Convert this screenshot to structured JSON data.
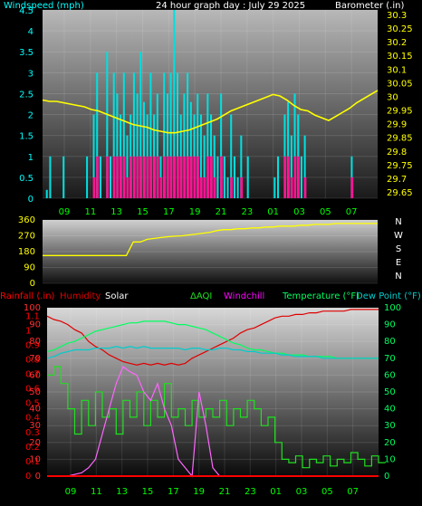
{
  "header": {
    "left_label": "Windspeed (mph)",
    "center_label": "24 hour graph day : July 29 2025",
    "right_label": "Barometer (.in)"
  },
  "colors": {
    "wind_gust": "#00e0e0",
    "wind_avg": "#ff1493",
    "barometer": "#ffff00",
    "direction": "#ffff00",
    "rainfall": "#ff0000",
    "humidity": "#e00000",
    "solar": "#ff66ff",
    "aqi": "#20e020",
    "windchill": "#ff00ff",
    "temperature": "#00ff60",
    "dewpoint": "#00cccc",
    "x_ticks": "#00ff00",
    "left_ticks_top": "#00ffff",
    "right_ticks_top": "#ffff00"
  },
  "chart_data": [
    {
      "type": "bar",
      "title": "24 hour graph day : July 29 2025",
      "ylabel": "Windspeed (mph)",
      "y2label": "Barometer (.in)",
      "ylim": [
        0,
        4.5
      ],
      "y2lim": [
        29.63,
        30.32
      ],
      "x_ticks": [
        "09",
        "11",
        "13",
        "15",
        "17",
        "19",
        "21",
        "23",
        "01",
        "03",
        "05",
        "07"
      ],
      "y_ticks": [
        "0",
        "0.5",
        "1",
        "1.5",
        "2",
        "2.5",
        "3",
        "3.5",
        "4",
        "4.5"
      ],
      "y2_ticks": [
        "29.65",
        "29.7",
        "29.75",
        "29.8",
        "29.85",
        "29.9",
        "29.95",
        "30",
        "30.05",
        "30.1",
        "30.15",
        "30.2",
        "30.25",
        "30.3"
      ],
      "series": [
        {
          "name": "gust",
          "values": [
            0,
            0.2,
            1,
            0,
            0,
            0,
            1,
            0,
            0,
            0,
            0,
            0,
            0,
            1,
            0,
            2,
            3,
            1,
            0,
            3.5,
            1,
            3,
            2.5,
            2,
            3,
            1.5,
            2,
            3,
            2.5,
            3.5,
            2.3,
            2,
            3,
            2,
            2.5,
            1,
            3,
            2.5,
            3,
            4.5,
            3,
            2,
            2.5,
            3,
            2.3,
            2,
            2.5,
            2,
            1.5,
            2.5,
            2,
            1.5,
            1,
            2.5,
            1,
            0.5,
            2,
            1,
            0.5,
            1.5,
            0,
            1,
            0,
            0,
            0,
            0,
            0,
            0,
            0,
            0.5,
            1,
            0,
            2,
            2.3,
            1.5,
            2.5,
            2,
            1,
            1.5,
            0,
            0,
            0,
            0,
            0,
            0,
            0,
            0,
            0,
            0,
            0,
            0,
            0,
            1,
            0,
            0,
            0,
            0,
            0,
            0,
            0
          ]
        },
        {
          "name": "average",
          "values": [
            0,
            0,
            0,
            0,
            0,
            0,
            0,
            0,
            0,
            0,
            0,
            0,
            0,
            0,
            0,
            0.5,
            1,
            0,
            0,
            1,
            0,
            1,
            1,
            1,
            1,
            0.5,
            1,
            1,
            1,
            1,
            1,
            1,
            1,
            1,
            1,
            0.5,
            1,
            1,
            1,
            1,
            1,
            1,
            1,
            1,
            1,
            1,
            1,
            0.5,
            0.5,
            1,
            1,
            0.5,
            0,
            1,
            0,
            0,
            0.5,
            0,
            0,
            0.5,
            0,
            0,
            0,
            0,
            0,
            0,
            0,
            0,
            0,
            0,
            0,
            0,
            1,
            1,
            0.5,
            1,
            1,
            0,
            0.5,
            0,
            0,
            0,
            0,
            0,
            0,
            0,
            0,
            0,
            0,
            0,
            0,
            0,
            0.5,
            0,
            0,
            0,
            0,
            0,
            0,
            0
          ]
        },
        {
          "name": "barometer",
          "values": [
            29.99,
            29.985,
            29.985,
            29.98,
            29.975,
            29.97,
            29.965,
            29.955,
            29.95,
            29.94,
            29.93,
            29.92,
            29.91,
            29.9,
            29.895,
            29.89,
            29.88,
            29.875,
            29.87,
            29.87,
            29.875,
            29.88,
            29.89,
            29.9,
            29.91,
            29.92,
            29.935,
            29.95,
            29.96,
            29.97,
            29.98,
            29.99,
            30.0,
            30.01,
            30.005,
            29.99,
            29.97,
            29.955,
            29.95,
            29.935,
            29.925,
            29.915,
            29.93,
            29.945,
            29.96,
            29.98,
            29.995,
            30.01,
            30.025
          ]
        }
      ]
    },
    {
      "type": "line",
      "title": "",
      "ylabel": "",
      "ylim": [
        0,
        360
      ],
      "x_ticks": [],
      "y_ticks": [
        "0",
        "90",
        "180",
        "270",
        "360"
      ],
      "direction_labels": [
        "N",
        "W",
        "S",
        "E",
        "N"
      ],
      "series": [
        {
          "name": "direction",
          "values": [
            158,
            158,
            158,
            158,
            158,
            158,
            158,
            158,
            158,
            158,
            158,
            158,
            158,
            235,
            235,
            250,
            255,
            260,
            265,
            268,
            270,
            275,
            280,
            285,
            290,
            300,
            305,
            305,
            310,
            310,
            315,
            315,
            320,
            320,
            325,
            325,
            325,
            330,
            330,
            335,
            335,
            335,
            340,
            340,
            340,
            340,
            340,
            340,
            340
          ]
        }
      ]
    },
    {
      "type": "line",
      "title": "",
      "ylabel": "Rainfall (.in)",
      "y2label": "Temperature (°F)",
      "legend": [
        "Rainfall (.in)",
        "Humidity",
        "Solar",
        "AQI",
        "Windchill",
        "Temperature (°F)",
        "Dew Point (°F)"
      ],
      "ylim": [
        0,
        100
      ],
      "y_ticks_rain": [
        "0",
        "0.1",
        "0.2",
        "0.3",
        "0.4",
        "0.5",
        "0.6",
        "0.7",
        "0.8",
        "0.9",
        "1",
        "1.1"
      ],
      "y_ticks_pct": [
        "0",
        "10",
        "20",
        "30",
        "40",
        "50",
        "60",
        "70",
        "80",
        "90",
        "100"
      ],
      "y2_ticks": [
        "0",
        "10",
        "20",
        "30",
        "40",
        "50",
        "60",
        "70",
        "80",
        "90",
        "100"
      ],
      "x_ticks": [
        "09",
        "11",
        "13",
        "15",
        "17",
        "19",
        "21",
        "23",
        "01",
        "03",
        "05",
        "07"
      ],
      "series": [
        {
          "name": "Humidity",
          "values": [
            95,
            93,
            92,
            90,
            87,
            85,
            80,
            77,
            75,
            72,
            70,
            68,
            67,
            66,
            67,
            66,
            67,
            66,
            67,
            66,
            67,
            70,
            72,
            74,
            76,
            78,
            80,
            82,
            85,
            87,
            88,
            90,
            92,
            94,
            95,
            95,
            96,
            96,
            97,
            97,
            98,
            98,
            98,
            98,
            99,
            99,
            99,
            99,
            99
          ]
        },
        {
          "name": "Temperature (°F)",
          "values": [
            74,
            75,
            77,
            79,
            80,
            82,
            84,
            86,
            87,
            88,
            89,
            90,
            91,
            91,
            92,
            92,
            92,
            92,
            91,
            90,
            90,
            89,
            88,
            87,
            85,
            83,
            81,
            79,
            78,
            76,
            75,
            75,
            74,
            73,
            73,
            72,
            72,
            72,
            71,
            71,
            71,
            71,
            70,
            70,
            70,
            70,
            70,
            70,
            70
          ]
        },
        {
          "name": "Dew Point (°F)",
          "values": [
            70,
            71,
            73,
            74,
            75,
            75,
            75,
            76,
            76,
            76,
            77,
            76,
            77,
            76,
            77,
            76,
            76,
            76,
            76,
            76,
            75,
            76,
            76,
            75,
            75,
            76,
            76,
            75,
            75,
            74,
            74,
            73,
            73,
            73,
            72,
            72,
            71,
            71,
            71,
            71,
            70,
            70,
            70,
            70,
            70,
            70,
            70,
            70,
            70
          ]
        },
        {
          "name": "AQI",
          "values": [
            60,
            65,
            55,
            40,
            25,
            45,
            30,
            50,
            35,
            40,
            25,
            45,
            35,
            50,
            30,
            45,
            35,
            55,
            35,
            40,
            30,
            45,
            35,
            40,
            35,
            45,
            30,
            40,
            35,
            45,
            40,
            30,
            35,
            20,
            10,
            8,
            12,
            5,
            10,
            8,
            12,
            6,
            10,
            8,
            14,
            10,
            6,
            12,
            8
          ]
        },
        {
          "name": "Solar",
          "values": [
            0,
            0,
            0,
            0,
            1,
            2,
            5,
            10,
            25,
            40,
            55,
            65,
            62,
            60,
            50,
            45,
            55,
            40,
            30,
            10,
            5,
            0,
            50,
            30,
            5,
            0,
            0,
            0,
            0,
            0,
            0,
            0,
            0,
            0,
            0,
            0,
            0,
            0,
            0,
            0,
            0,
            0,
            0,
            0,
            0,
            0,
            0,
            0,
            0
          ]
        },
        {
          "name": "Rainfall (.in)",
          "values": [
            0,
            0,
            0,
            0,
            0,
            0,
            0,
            0,
            0,
            0,
            0,
            0,
            0,
            0,
            0,
            0,
            0,
            0,
            0,
            0,
            0,
            0,
            0,
            0,
            0,
            0,
            0,
            0,
            0,
            0,
            0,
            0,
            0,
            0,
            0,
            0,
            0,
            0,
            0,
            0,
            0,
            0,
            0,
            0,
            0,
            0,
            0,
            0,
            0
          ]
        }
      ]
    }
  ]
}
